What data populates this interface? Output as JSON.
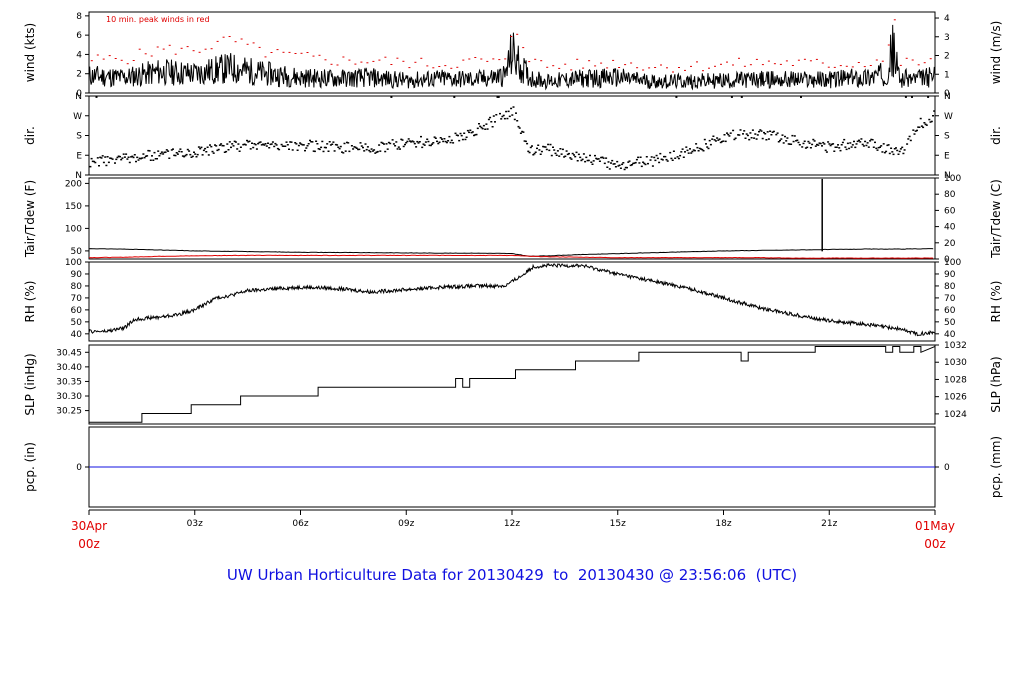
{
  "title": "UW Urban Horticulture Data for 20130429  to  20130430 @ 23:56:06  (UTC)",
  "colors": {
    "series": "#000000",
    "peak": "#e00000",
    "dewpoint": "#e00000",
    "precip": "#1010e0",
    "title": "#1010e0",
    "date_label": "#e00000"
  },
  "x_axis": {
    "ticks": [
      "03z",
      "06z",
      "09z",
      "12z",
      "15z",
      "18z",
      "21z"
    ],
    "start_label": [
      "30Apr",
      "00z"
    ],
    "end_label": [
      "01May",
      "00z"
    ]
  },
  "chart_data": [
    {
      "type": "line",
      "name": "wind",
      "left_label": "wind (kts)",
      "right_label": "wind (m/s)",
      "left_ticks": [
        "0",
        "2",
        "4",
        "6",
        "8"
      ],
      "right_ticks": [
        "0",
        "1",
        "2",
        "3",
        "4"
      ],
      "ylim": [
        0,
        8.4
      ],
      "annotation": "10 min. peak winds in red",
      "x": [
        0,
        1,
        2,
        3,
        4,
        5,
        6,
        7,
        8,
        9,
        10,
        11,
        11.8,
        12,
        12.2,
        12.5,
        13,
        14,
        15,
        16,
        17,
        18,
        19,
        20,
        21,
        22,
        22.6,
        22.8,
        23,
        23.5,
        24
      ],
      "series": [
        {
          "values": [
            1.8,
            1.6,
            2.2,
            2.0,
            2.6,
            2.0,
            1.6,
            1.5,
            1.6,
            1.3,
            1.5,
            1.4,
            1.8,
            4.2,
            3.0,
            1.6,
            1.2,
            1.5,
            1.6,
            1.2,
            1.2,
            1.3,
            1.4,
            1.4,
            1.4,
            1.6,
            2.0,
            4.5,
            1.5,
            1.5,
            1.7
          ]
        },
        {
          "values": [
            3.5,
            3.6,
            4.6,
            4.5,
            5.6,
            4.2,
            3.8,
            3.4,
            3.4,
            3.2,
            3.0,
            3.4,
            3.2,
            7.0,
            6.0,
            3.4,
            2.8,
            3.0,
            3.2,
            2.8,
            2.8,
            3.0,
            3.2,
            3.2,
            3.0,
            3.2,
            3.6,
            8.0,
            3.2,
            3.2,
            3.4
          ]
        }
      ]
    },
    {
      "type": "scatter",
      "name": "dir",
      "left_label": "dir.",
      "right_label": "dir.",
      "left_ticks": [
        "N",
        "E",
        "S",
        "W",
        "N"
      ],
      "right_ticks": [
        "N",
        "E",
        "S",
        "W",
        "N"
      ],
      "ylim": [
        0,
        360
      ],
      "x": [
        0,
        1,
        2,
        3,
        4,
        5,
        6,
        7,
        8,
        9,
        10,
        10.8,
        11.2,
        11.6,
        12,
        12.5,
        13,
        14,
        15,
        16,
        17,
        18,
        19,
        20,
        21,
        22,
        23,
        23.5,
        24
      ],
      "values": [
        60,
        80,
        95,
        110,
        135,
        140,
        140,
        130,
        125,
        150,
        160,
        190,
        230,
        260,
        300,
        110,
        120,
        85,
        45,
        70,
        110,
        180,
        190,
        160,
        130,
        160,
        100,
        230,
        280
      ]
    },
    {
      "type": "line",
      "name": "temperature",
      "left_label": "Tair/Tdew (F)",
      "right_label": "Tair/Tdew (C)",
      "left_ticks": [
        "50",
        "100",
        "150",
        "200"
      ],
      "right_ticks": [
        "0",
        "20",
        "40",
        "60",
        "80",
        "100"
      ],
      "ylim": [
        32,
        212
      ],
      "x": [
        0,
        1,
        2,
        3,
        4,
        5,
        6,
        7,
        8,
        9,
        10,
        11,
        12,
        12.5,
        13,
        14,
        15,
        16,
        17,
        18,
        19,
        20,
        21,
        22,
        23,
        24
      ],
      "series": [
        {
          "values": [
            55,
            54,
            52,
            50,
            49,
            48,
            47,
            46.5,
            46,
            45.5,
            45,
            45,
            44,
            38,
            39,
            42,
            44,
            46,
            48,
            50,
            51,
            52,
            53,
            54,
            54,
            55
          ]
        },
        {
          "values": [
            35,
            36,
            38,
            39,
            40,
            40,
            40,
            40,
            40,
            40,
            40,
            40,
            40,
            38,
            37,
            36,
            35,
            35,
            35,
            35,
            35,
            34,
            34,
            34,
            34,
            34
          ]
        }
      ],
      "spike": {
        "x": 20.8,
        "values": [
          49,
          210
        ]
      }
    },
    {
      "type": "line",
      "name": "rh",
      "left_label": "RH (%)",
      "right_label": "RH (%)",
      "left_ticks": [
        "40",
        "50",
        "60",
        "70",
        "80",
        "90",
        "100"
      ],
      "right_ticks": [
        "40",
        "50",
        "60",
        "70",
        "80",
        "90",
        "100"
      ],
      "ylim": [
        34,
        100
      ],
      "x": [
        0,
        0.5,
        1,
        1.3,
        1.6,
        2,
        2.5,
        3,
        3.3,
        3.6,
        4,
        4.5,
        5,
        6,
        7,
        8,
        9,
        10,
        11,
        11.8,
        12.3,
        12.6,
        13,
        13.5,
        14,
        15,
        16,
        17,
        18,
        19,
        20,
        21,
        22,
        23,
        23.5,
        24
      ],
      "series": [
        {
          "values": [
            42,
            42,
            45,
            52,
            53,
            54,
            56,
            60,
            65,
            70,
            72,
            76,
            77,
            79,
            78,
            75,
            77,
            79,
            80,
            80,
            89,
            96,
            97,
            97,
            97,
            90,
            84,
            78,
            70,
            62,
            56,
            51,
            48,
            44,
            40,
            41
          ]
        }
      ]
    },
    {
      "type": "line",
      "name": "slp",
      "left_label": "SLP (inHg)",
      "right_label": "SLP (hPa)",
      "left_ticks": [
        "30.25",
        "30.30",
        "30.35",
        "30.40",
        "30.45"
      ],
      "right_ticks": [
        "1024",
        "1026",
        "1028",
        "1030",
        "1032"
      ],
      "ylim": [
        30.204,
        30.475
      ],
      "x": [
        0,
        1.5,
        1.5,
        2.9,
        2.9,
        4.3,
        4.3,
        6.5,
        6.5,
        10.4,
        10.4,
        10.6,
        10.6,
        10.8,
        10.8,
        12.1,
        12.1,
        13.8,
        13.8,
        15.6,
        15.6,
        18.5,
        18.5,
        18.7,
        18.7,
        20.6,
        20.6,
        22.6,
        22.6,
        22.8,
        22.8,
        23.0,
        23.0,
        23.4,
        23.4,
        23.6,
        23.6,
        24
      ],
      "series": [
        {
          "values": [
            30.21,
            30.21,
            30.24,
            30.24,
            30.27,
            30.27,
            30.3,
            30.3,
            30.33,
            30.33,
            30.36,
            30.36,
            30.33,
            30.33,
            30.36,
            30.36,
            30.39,
            30.39,
            30.42,
            30.42,
            30.45,
            30.45,
            30.42,
            30.42,
            30.45,
            30.45,
            30.47,
            30.47,
            30.45,
            30.45,
            30.47,
            30.47,
            30.45,
            30.45,
            30.47,
            30.47,
            30.45,
            30.47
          ]
        }
      ]
    },
    {
      "type": "line",
      "name": "precip",
      "left_label": "pcp. (in)",
      "right_label": "pcp. (mm)",
      "left_ticks": [
        "0"
      ],
      "right_ticks": [
        "0"
      ],
      "ylim": [
        -1,
        1
      ],
      "x": [
        0,
        24
      ],
      "series": [
        {
          "values": [
            0,
            0
          ]
        }
      ]
    }
  ]
}
